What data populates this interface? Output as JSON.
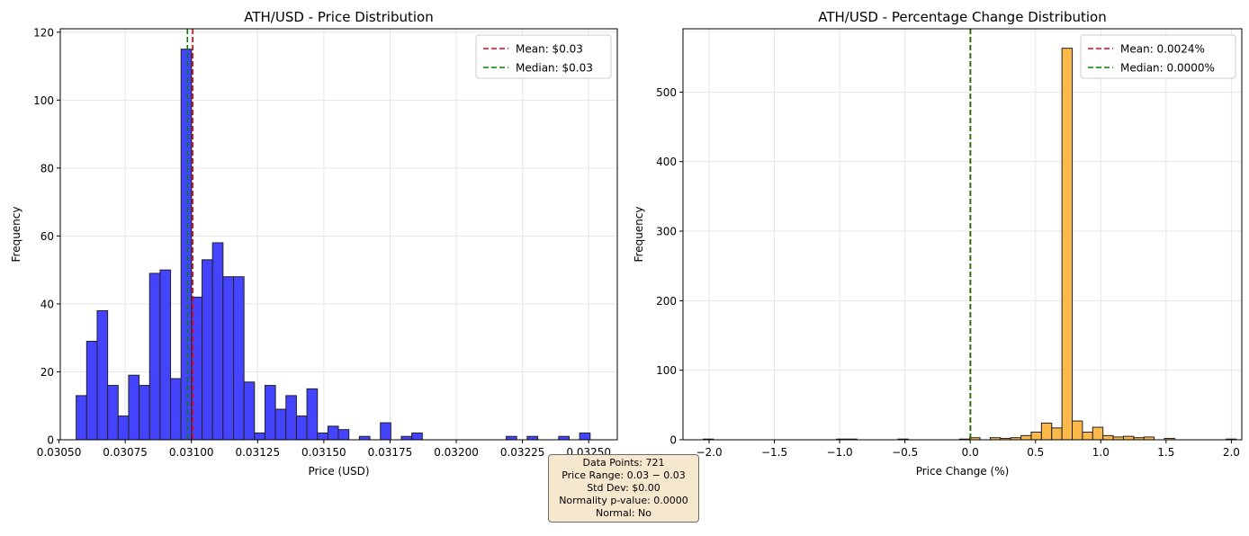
{
  "colors": {
    "price_bars": "#4444ff",
    "change_bars": "#fdb84a",
    "bar_edge": "#222222",
    "mean_line": "#e8000b",
    "median_line": "#008000",
    "grid": "#e6e6e6",
    "stats_box_bg": "#f6e8cf"
  },
  "stats_box": {
    "line1": "Data Points: 721",
    "line2": "Price Range: 0.03 − 0.03",
    "line3": "Std Dev: $0.00",
    "line4": "Normality p-value: 0.0000",
    "line5": "Normal: No"
  },
  "chart_data": [
    {
      "type": "bar",
      "subtype": "histogram",
      "title": "ATH/USD - Price Distribution",
      "xlabel": "Price (USD)",
      "ylabel": "Frequency",
      "xlim": [
        0.030505,
        0.032608
      ],
      "ylim": [
        0,
        121
      ],
      "xticks": [
        0.0305,
        0.03075,
        0.031,
        0.03125,
        0.0315,
        0.03175,
        0.032,
        0.03225,
        0.0325
      ],
      "xtick_labels": [
        "0.03050",
        "0.03075",
        "0.03100",
        "0.03125",
        "0.03150",
        "0.03175",
        "0.03200",
        "0.03225",
        "0.03250"
      ],
      "yticks": [
        0,
        20,
        40,
        60,
        80,
        100,
        120
      ],
      "grid": true,
      "legend_position": "top-right",
      "bin_start": 0.030565,
      "bin_width": 3.96e-05,
      "counts": [
        13,
        29,
        38,
        16,
        7,
        19,
        16,
        49,
        50,
        18,
        115,
        42,
        53,
        58,
        48,
        48,
        17,
        2,
        16,
        9,
        13,
        7,
        15,
        2,
        4,
        3,
        0,
        1,
        0,
        5,
        0,
        1,
        2,
        0,
        0,
        0,
        0,
        0,
        0,
        0,
        0,
        1,
        0,
        1,
        0,
        0,
        1,
        0,
        2
      ],
      "mean": 0.031005,
      "median": 0.030985,
      "legend": [
        {
          "label": "Mean: $0.03",
          "style": "mean"
        },
        {
          "label": "Median: $0.03",
          "style": "median"
        }
      ]
    },
    {
      "type": "bar",
      "subtype": "histogram",
      "title": "ATH/USD - Percentage Change Distribution",
      "xlabel": "Price Change (%)",
      "ylabel": "Frequency",
      "xlim": [
        -2.2,
        2.08
      ],
      "ylim": [
        0,
        591
      ],
      "xticks": [
        -2.0,
        -1.5,
        -1.0,
        -0.5,
        0.0,
        0.5,
        1.0,
        1.5,
        2.0
      ],
      "xtick_labels": [
        "−2.0",
        "−1.5",
        "−1.0",
        "−0.5",
        "0.0",
        "0.5",
        "1.0",
        "1.5",
        "2.0"
      ],
      "yticks": [
        0,
        100,
        200,
        300,
        400,
        500
      ],
      "grid": true,
      "legend_position": "top-right",
      "bin_start": -2.045,
      "bin_width": 0.0785,
      "counts": [
        1,
        0,
        0,
        0,
        0,
        0,
        0,
        0,
        0,
        0,
        0,
        0,
        0,
        1,
        1,
        0,
        0,
        0,
        0,
        1,
        0,
        0,
        0,
        0,
        0,
        1,
        3,
        0,
        3,
        2,
        3,
        6,
        11,
        24,
        17,
        563,
        27,
        11,
        18,
        6,
        4,
        5,
        3,
        4,
        0,
        2,
        0,
        0,
        0,
        0,
        0,
        1,
        0,
        0,
        0,
        0,
        1,
        0,
        0,
        0,
        0,
        0,
        1,
        0,
        0,
        0,
        1,
        0
      ],
      "mean": 0.0024,
      "median": 0.0,
      "legend": [
        {
          "label": "Mean: 0.0024%",
          "style": "mean"
        },
        {
          "label": "Median: 0.0000%",
          "style": "median"
        }
      ]
    }
  ]
}
